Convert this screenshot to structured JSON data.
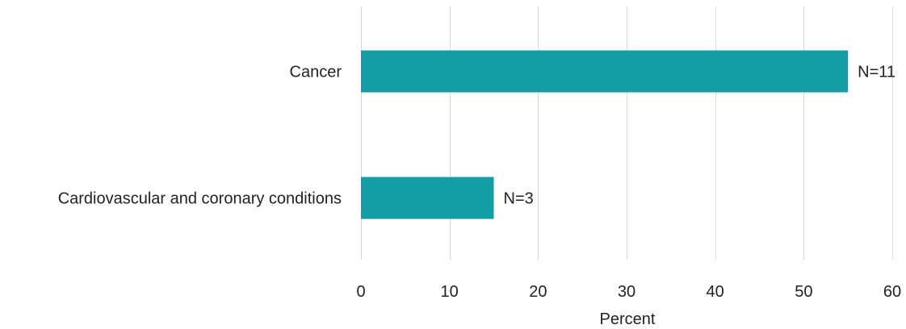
{
  "chart_data": {
    "type": "bar",
    "orientation": "horizontal",
    "categories": [
      "Cancer",
      "Cardiovascular and coronary conditions"
    ],
    "values": [
      55,
      15
    ],
    "data_labels": [
      "N=11",
      "N=3"
    ],
    "xlabel": "Percent",
    "ylabel": "",
    "xlim": [
      0,
      60
    ],
    "x_ticks": [
      0,
      10,
      20,
      30,
      40,
      50,
      60
    ],
    "grid": "vertical",
    "legend": "none",
    "colors": {
      "bar": "#139ea5",
      "grid": "#d9d9d9",
      "text": "#222222"
    }
  }
}
